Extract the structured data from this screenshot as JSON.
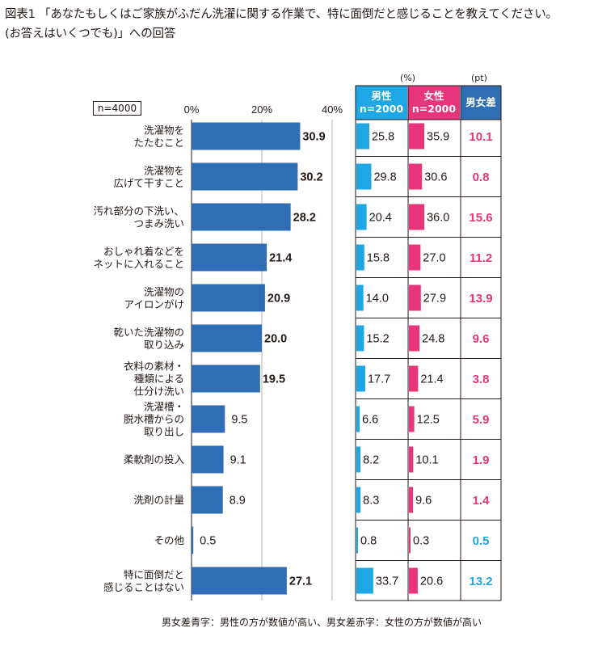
{
  "title": {
    "line1": "図表1 「あなたもしくはご家族がふだん洗濯に関する作業で、特に面倒だと感じることを教えてください。",
    "line2": "(お答えはいくつでも)」への回答"
  },
  "note": "男女差青字：男性の方が数値が高い、男女差赤字：女性の方が数値が高い",
  "headers": {
    "pct_unit": "(%)",
    "pt_unit": "(pt)",
    "male": "男性",
    "male_n": "n=2000",
    "female": "女性",
    "female_n": "n=2000",
    "diff": "男女差"
  },
  "colors": {
    "total_bar": "#2f6db5",
    "male_bar": "#1ea7e4",
    "female_bar": "#e8347a",
    "male_higher_text": "#1ea7e4",
    "female_higher_text": "#e8347a",
    "male_header": "#1ea7e4",
    "female_header": "#e8347a",
    "diff_header": "#2f6db5"
  },
  "chart_data": {
    "type": "bar",
    "orientation": "horizontal",
    "n_label": "n=4000",
    "xlim": [
      0,
      40
    ],
    "xticks": [
      "0%",
      "20%",
      "40%"
    ],
    "grid": true,
    "categories": [
      [
        "洗濯物を",
        "たたむこと"
      ],
      [
        "洗濯物を",
        "広げて干すこと"
      ],
      [
        "汚れ部分の下洗い、",
        "つまみ洗い"
      ],
      [
        "おしゃれ着などを",
        "ネットに入れること"
      ],
      [
        "洗濯物の",
        "アイロンがけ"
      ],
      [
        "乾いた洗濯物の",
        "取り込み"
      ],
      [
        "衣料の素材・",
        "種類による",
        "仕分け洗い"
      ],
      [
        "洗濯槽・",
        "脱水槽からの",
        "取り出し"
      ],
      [
        "柔軟剤の投入"
      ],
      [
        "洗剤の計量"
      ],
      [
        "その他"
      ],
      [
        "特に面倒だと",
        "感じることはない"
      ]
    ],
    "total": [
      "30.9",
      "30.2",
      "28.2",
      "21.4",
      "20.9",
      "20.0",
      "19.5",
      "9.5",
      "9.1",
      "8.9",
      "0.5",
      "27.1"
    ],
    "male": [
      "25.8",
      "29.8",
      "20.4",
      "15.8",
      "14.0",
      "15.2",
      "17.7",
      "6.6",
      "8.2",
      "8.3",
      "0.8",
      "33.7"
    ],
    "female": [
      "35.9",
      "30.6",
      "36.0",
      "27.0",
      "27.9",
      "24.8",
      "21.4",
      "12.5",
      "10.1",
      "9.6",
      "0.3",
      "20.6"
    ],
    "diff": [
      "10.1",
      "0.8",
      "15.6",
      "11.2",
      "13.9",
      "9.6",
      "3.8",
      "5.9",
      "1.9",
      "1.4",
      "0.5",
      "13.2"
    ],
    "diff_higher": [
      "female",
      "female",
      "female",
      "female",
      "female",
      "female",
      "female",
      "female",
      "female",
      "female",
      "male",
      "male"
    ]
  }
}
